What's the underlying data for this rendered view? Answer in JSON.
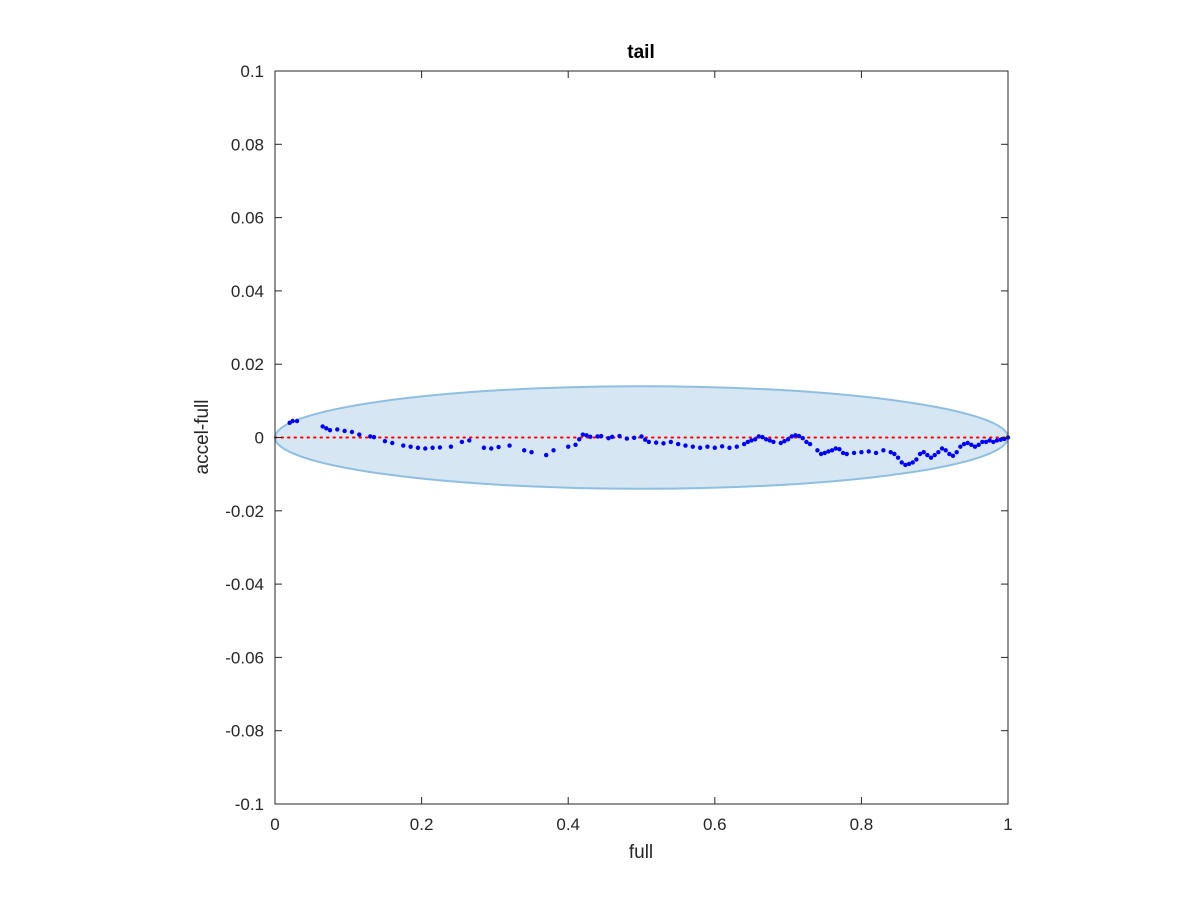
{
  "chart_data": {
    "type": "scatter",
    "title": "tail",
    "xlabel": "full",
    "ylabel": "accel-full",
    "xlim": [
      0,
      1
    ],
    "ylim": [
      -0.1,
      0.1
    ],
    "xticks": [
      0,
      0.2,
      0.4,
      0.6,
      0.8,
      1
    ],
    "xtick_labels": [
      "0",
      "0.2",
      "0.4",
      "0.6",
      "0.8",
      "1"
    ],
    "yticks": [
      0.1,
      0.08,
      0.06,
      0.04,
      0.02,
      0,
      -0.02,
      -0.04,
      -0.06,
      -0.08,
      -0.1
    ],
    "ytick_labels": [
      "0.1",
      "0.08",
      "0.06",
      "0.04",
      "0.02",
      "0",
      "-0.02",
      "-0.04",
      "-0.06",
      "-0.08",
      "-0.1"
    ],
    "grid": false,
    "reference_line": {
      "y": 0,
      "style": "dotted",
      "color": "#ff0000"
    },
    "ellipse": {
      "center": [
        0.5,
        0
      ],
      "x_radius": 0.5,
      "y_radius": 0.014,
      "fill": "#d6e6f3",
      "stroke": "#8fbfe0"
    },
    "series": [
      {
        "color": "#0000ff",
        "points": [
          [
            0.02,
            0.004
          ],
          [
            0.024,
            0.0045
          ],
          [
            0.03,
            0.0045
          ],
          [
            0.065,
            0.003
          ],
          [
            0.07,
            0.0025
          ],
          [
            0.075,
            0.002
          ],
          [
            0.085,
            0.0022
          ],
          [
            0.095,
            0.0018
          ],
          [
            0.105,
            0.0015
          ],
          [
            0.115,
            0.0008
          ],
          [
            0.13,
            0.0003
          ],
          [
            0.135,
            0.0001
          ],
          [
            0.15,
            -0.001
          ],
          [
            0.16,
            -0.0015
          ],
          [
            0.175,
            -0.0022
          ],
          [
            0.185,
            -0.0025
          ],
          [
            0.195,
            -0.0028
          ],
          [
            0.205,
            -0.003
          ],
          [
            0.215,
            -0.0028
          ],
          [
            0.225,
            -0.0027
          ],
          [
            0.24,
            -0.0025
          ],
          [
            0.255,
            -0.0012
          ],
          [
            0.265,
            -0.0008
          ],
          [
            0.285,
            -0.0028
          ],
          [
            0.295,
            -0.003
          ],
          [
            0.305,
            -0.0026
          ],
          [
            0.32,
            -0.0022
          ],
          [
            0.34,
            -0.0035
          ],
          [
            0.35,
            -0.004
          ],
          [
            0.37,
            -0.0048
          ],
          [
            0.38,
            -0.0035
          ],
          [
            0.4,
            -0.0025
          ],
          [
            0.41,
            -0.002
          ],
          [
            0.415,
            -0.0005
          ],
          [
            0.42,
            0.0008
          ],
          [
            0.425,
            0.0006
          ],
          [
            0.43,
            0.0002
          ],
          [
            0.44,
            0.0003
          ],
          [
            0.445,
            0.0004
          ],
          [
            0.455,
            -0.0002
          ],
          [
            0.46,
            0.0002
          ],
          [
            0.47,
            0.0004
          ],
          [
            0.48,
            -0.0003
          ],
          [
            0.49,
            -0.0001
          ],
          [
            0.5,
            0.0003
          ],
          [
            0.505,
            -0.0006
          ],
          [
            0.51,
            -0.0012
          ],
          [
            0.52,
            -0.0014
          ],
          [
            0.53,
            -0.0016
          ],
          [
            0.54,
            -0.0012
          ],
          [
            0.55,
            -0.0018
          ],
          [
            0.56,
            -0.0022
          ],
          [
            0.57,
            -0.0025
          ],
          [
            0.58,
            -0.0028
          ],
          [
            0.59,
            -0.0025
          ],
          [
            0.6,
            -0.0028
          ],
          [
            0.61,
            -0.0024
          ],
          [
            0.62,
            -0.0028
          ],
          [
            0.63,
            -0.0025
          ],
          [
            0.64,
            -0.0018
          ],
          [
            0.645,
            -0.0012
          ],
          [
            0.65,
            -0.0008
          ],
          [
            0.655,
            -0.0005
          ],
          [
            0.66,
            0.0003
          ],
          [
            0.665,
            0.0001
          ],
          [
            0.67,
            -0.0005
          ],
          [
            0.675,
            -0.0008
          ],
          [
            0.68,
            -0.0012
          ],
          [
            0.69,
            -0.0015
          ],
          [
            0.695,
            -0.001
          ],
          [
            0.7,
            -0.0005
          ],
          [
            0.705,
            0.0003
          ],
          [
            0.71,
            0.0006
          ],
          [
            0.715,
            0.0004
          ],
          [
            0.72,
            -0.0002
          ],
          [
            0.725,
            -0.0012
          ],
          [
            0.73,
            -0.0018
          ],
          [
            0.74,
            -0.0035
          ],
          [
            0.745,
            -0.0045
          ],
          [
            0.75,
            -0.0042
          ],
          [
            0.755,
            -0.0038
          ],
          [
            0.76,
            -0.0035
          ],
          [
            0.765,
            -0.003
          ],
          [
            0.77,
            -0.0032
          ],
          [
            0.775,
            -0.0042
          ],
          [
            0.78,
            -0.0045
          ],
          [
            0.79,
            -0.0042
          ],
          [
            0.8,
            -0.004
          ],
          [
            0.81,
            -0.0038
          ],
          [
            0.82,
            -0.0042
          ],
          [
            0.83,
            -0.0035
          ],
          [
            0.84,
            -0.004
          ],
          [
            0.845,
            -0.0045
          ],
          [
            0.85,
            -0.0055
          ],
          [
            0.855,
            -0.0068
          ],
          [
            0.86,
            -0.0075
          ],
          [
            0.865,
            -0.0072
          ],
          [
            0.87,
            -0.0068
          ],
          [
            0.875,
            -0.006
          ],
          [
            0.88,
            -0.0045
          ],
          [
            0.885,
            -0.004
          ],
          [
            0.89,
            -0.0048
          ],
          [
            0.895,
            -0.0055
          ],
          [
            0.9,
            -0.0048
          ],
          [
            0.905,
            -0.004
          ],
          [
            0.91,
            -0.003
          ],
          [
            0.915,
            -0.0035
          ],
          [
            0.92,
            -0.0045
          ],
          [
            0.925,
            -0.005
          ],
          [
            0.93,
            -0.004
          ],
          [
            0.935,
            -0.0025
          ],
          [
            0.94,
            -0.0018
          ],
          [
            0.945,
            -0.0015
          ],
          [
            0.95,
            -0.002
          ],
          [
            0.955,
            -0.0025
          ],
          [
            0.96,
            -0.002
          ],
          [
            0.965,
            -0.0012
          ],
          [
            0.97,
            -0.0012
          ],
          [
            0.975,
            -0.0008
          ],
          [
            0.98,
            -0.0012
          ],
          [
            0.985,
            -0.0008
          ],
          [
            0.99,
            -0.0006
          ],
          [
            0.995,
            -0.0004
          ],
          [
            1.0,
            0.0
          ]
        ]
      }
    ]
  }
}
